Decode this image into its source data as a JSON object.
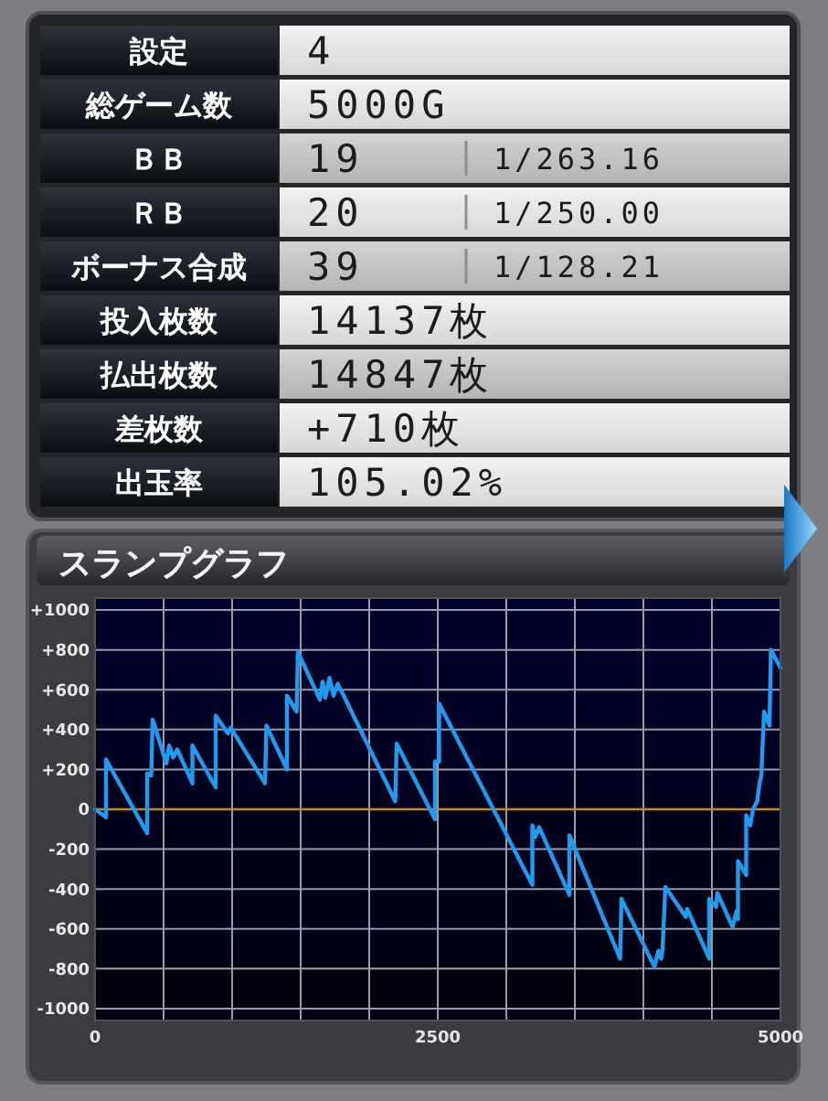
{
  "chart_data": [
    {
      "type": "other",
      "y_categories": [
        "設定",
        "総ゲーム数",
        "ＢＢ",
        "ＲＢ",
        "ボーナス合成",
        "投入枚数",
        "払出枚数",
        "差枚数",
        "出玉率"
      ],
      "cell_labels": [
        [
          "4",
          null
        ],
        [
          "5000G",
          null
        ],
        [
          "19",
          "1/263.16"
        ],
        [
          "20",
          "1/250.00"
        ],
        [
          "39",
          "1/128.21"
        ],
        [
          "14137枚",
          null
        ],
        [
          "14847枚",
          null
        ],
        [
          "+710枚",
          null
        ],
        [
          "105.02%",
          null
        ]
      ]
    },
    {
      "type": "line",
      "title": "スランプグラフ",
      "x": [
        0,
        80,
        80,
        380,
        380,
        410,
        420,
        520,
        540,
        570,
        600,
        710,
        710,
        880,
        880,
        970,
        990,
        1240,
        1250,
        1400,
        1400,
        1470,
        1480,
        1640,
        1660,
        1680,
        1710,
        1740,
        1770,
        1800,
        2190,
        2200,
        2480,
        2480,
        2510,
        2510,
        3190,
        3190,
        3210,
        3240,
        3460,
        3460,
        3830,
        3840,
        4080,
        4110,
        4130,
        4140,
        4160,
        4310,
        4320,
        4480,
        4480,
        4530,
        4540,
        4650,
        4680,
        4690,
        4690,
        4750,
        4750,
        4780,
        4800,
        4830,
        4850,
        4860,
        4880,
        4920,
        4930,
        5000
      ],
      "series": [
        {
          "color": "#1e9cf0",
          "values": [
            0,
            -40,
            250,
            -120,
            180,
            170,
            450,
            230,
            320,
            260,
            300,
            130,
            320,
            110,
            470,
            380,
            410,
            130,
            420,
            200,
            570,
            490,
            790,
            550,
            640,
            560,
            660,
            570,
            630,
            590,
            40,
            330,
            -50,
            240,
            240,
            530,
            -380,
            -80,
            -140,
            -90,
            -430,
            -130,
            -750,
            -450,
            -790,
            -710,
            -750,
            -700,
            -390,
            -540,
            -500,
            -750,
            -450,
            -490,
            -420,
            -590,
            -510,
            -550,
            -260,
            -330,
            -30,
            -80,
            0,
            40,
            140,
            170,
            490,
            420,
            800,
            710
          ]
        }
      ],
      "xlim": [
        0,
        5000
      ],
      "xticks": [
        0,
        {
          "value": 500,
          "label": null
        },
        {
          "value": 1000,
          "label": null
        },
        {
          "value": 1500,
          "label": null
        },
        {
          "value": 2000,
          "label": null
        },
        2500,
        {
          "value": 3000,
          "label": null
        },
        {
          "value": 3500,
          "label": null
        },
        {
          "value": 4000,
          "label": null
        },
        {
          "value": 4500,
          "label": null
        },
        5000
      ],
      "ylim": [
        -1060,
        1060
      ],
      "yticks": [
        {
          "value": 1000,
          "label": "+1000"
        },
        {
          "value": 800,
          "label": "+800"
        },
        {
          "value": 600,
          "label": "+600"
        },
        {
          "value": 400,
          "label": "+400"
        },
        {
          "value": 200,
          "label": "+200"
        },
        0,
        -200,
        -400,
        -600,
        -800,
        -1000
      ],
      "grid": true,
      "ref_lines": [
        {
          "axis": "y",
          "value": 0,
          "color": "#c8862a"
        }
      ]
    }
  ]
}
